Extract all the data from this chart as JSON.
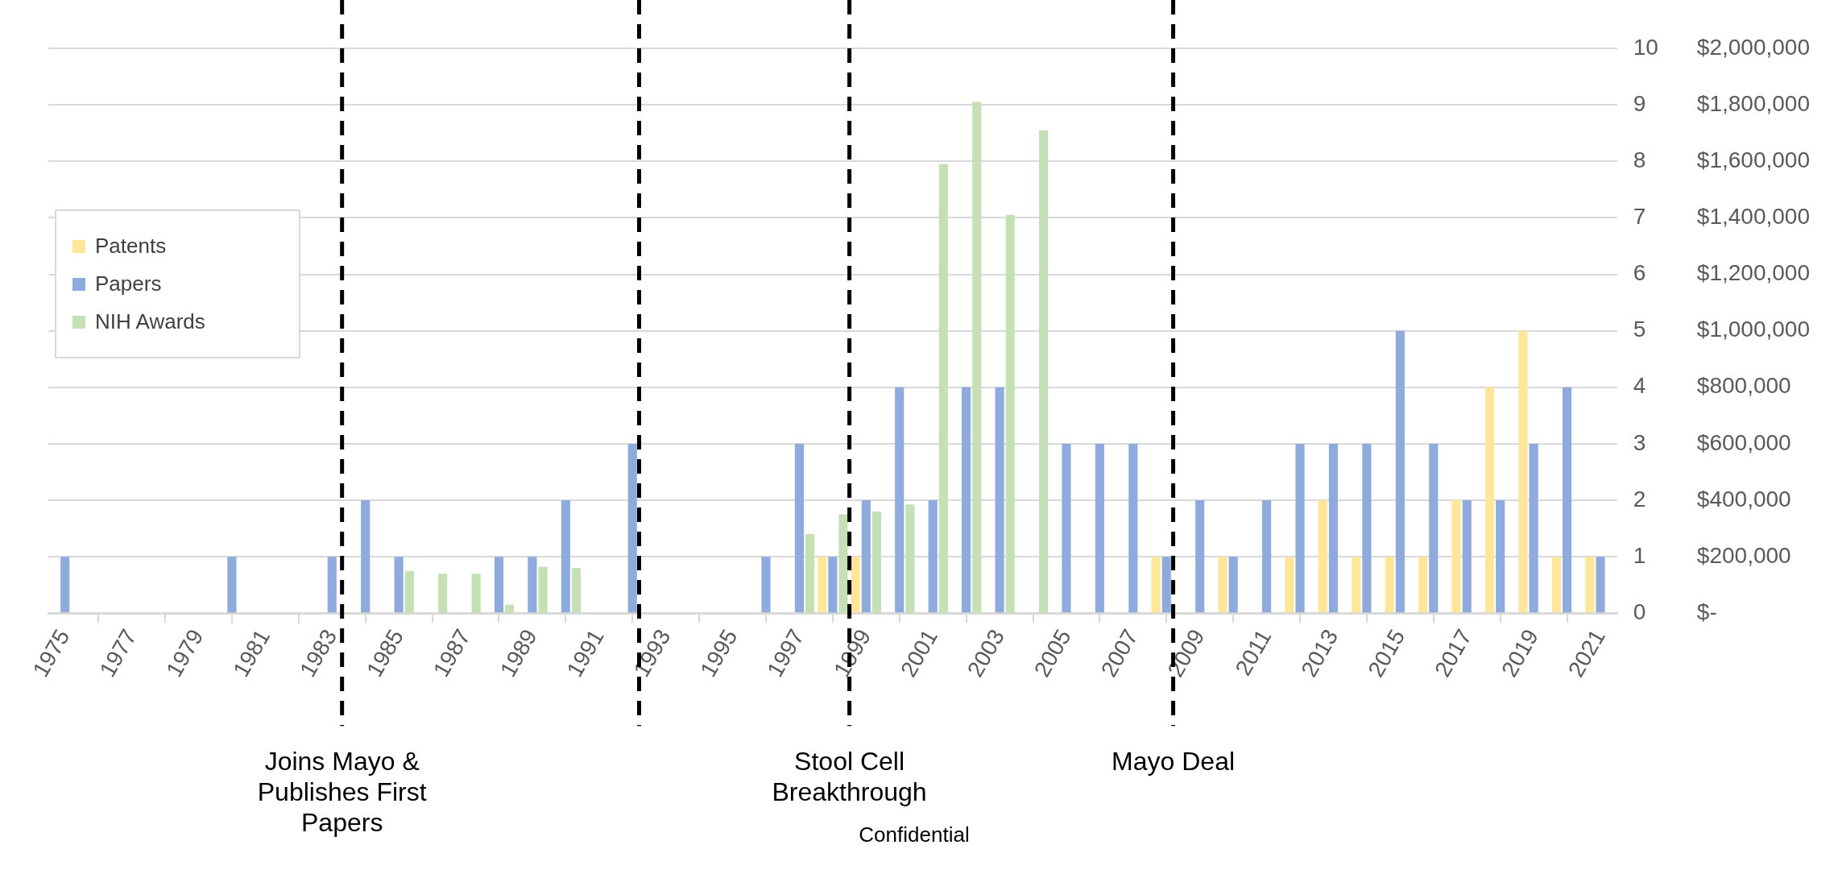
{
  "chart_data": {
    "type": "bar",
    "x": [
      1975,
      1976,
      1977,
      1978,
      1979,
      1980,
      1981,
      1982,
      1983,
      1984,
      1985,
      1986,
      1987,
      1988,
      1989,
      1990,
      1991,
      1992,
      1993,
      1994,
      1995,
      1996,
      1997,
      1998,
      1999,
      2000,
      2001,
      2002,
      2003,
      2004,
      2005,
      2006,
      2007,
      2008,
      2009,
      2010,
      2011,
      2012,
      2013,
      2014,
      2015,
      2016,
      2017,
      2018,
      2019,
      2020,
      2021
    ],
    "series": [
      {
        "name": "Patents",
        "color": "#ffe699",
        "values": [
          0,
          0,
          0,
          0,
          0,
          0,
          0,
          0,
          0,
          0,
          0,
          0,
          0,
          0,
          0,
          0,
          0,
          0,
          0,
          0,
          0,
          0,
          0,
          1,
          1,
          0,
          0,
          0,
          0,
          0,
          0,
          0,
          0,
          1,
          0,
          1,
          0,
          1,
          2,
          1,
          1,
          1,
          2,
          4,
          5,
          1,
          1
        ]
      },
      {
        "name": "Papers",
        "color": "#8faadc",
        "values": [
          1,
          0,
          0,
          0,
          0,
          1,
          0,
          0,
          1,
          2,
          1,
          0,
          0,
          1,
          1,
          2,
          0,
          3,
          0,
          0,
          0,
          1,
          3,
          1,
          2,
          4,
          2,
          4,
          4,
          0,
          3,
          3,
          3,
          1,
          2,
          1,
          2,
          3,
          3,
          3,
          5,
          3,
          2,
          2,
          3,
          4,
          1
        ]
      },
      {
        "name": "NIH Awards",
        "color": "#c5e0b4",
        "axis": "y2",
        "values": [
          0,
          0,
          0,
          0,
          0,
          0,
          0,
          0,
          0,
          0,
          150000,
          140000,
          140000,
          30000,
          165000,
          160000,
          0,
          0,
          0,
          0,
          0,
          0,
          280000,
          350000,
          360000,
          385000,
          1590000,
          1810000,
          1410000,
          1710000,
          0,
          0,
          0,
          0,
          0,
          0,
          0,
          0,
          0,
          0,
          0,
          0,
          0,
          0,
          0,
          0,
          0
        ]
      }
    ],
    "xlim": [
      1974.5,
      2021.5
    ],
    "xticks": [
      1975,
      1977,
      1979,
      1981,
      1983,
      1985,
      1987,
      1989,
      1991,
      1993,
      1995,
      1997,
      1999,
      2001,
      2003,
      2005,
      2007,
      2009,
      2011,
      2013,
      2015,
      2017,
      2019,
      2021
    ],
    "ylim": [
      0,
      10
    ],
    "yticks": [
      0,
      1,
      2,
      3,
      4,
      5,
      6,
      7,
      8,
      9,
      10
    ],
    "y2lim": [
      0,
      2000000
    ],
    "y2ticks": [
      {
        "value": 0,
        "label": "$-"
      },
      {
        "value": 200000,
        "label": "$200,000"
      },
      {
        "value": 400000,
        "label": "$400,000"
      },
      {
        "value": 600000,
        "label": "$600,000"
      },
      {
        "value": 800000,
        "label": "$800,000"
      },
      {
        "value": 1000000,
        "label": "$1,000,000"
      },
      {
        "value": 1200000,
        "label": "$1,200,000"
      },
      {
        "value": 1400000,
        "label": "$1,400,000"
      },
      {
        "value": 1600000,
        "label": "$1,600,000"
      },
      {
        "value": 1800000,
        "label": "$1,800,000"
      },
      {
        "value": 2000000,
        "label": "$2,000,000"
      }
    ],
    "grid": "y",
    "legend": "left",
    "ref_lines": [
      {
        "axis": "x",
        "value": 1983.3,
        "label": "Joins Mayo & Publishes First Papers",
        "color": "#000000",
        "line_style": "dashed"
      },
      {
        "axis": "x",
        "value": 1992.2,
        "color": "#000000",
        "line_style": "dashed"
      },
      {
        "axis": "x",
        "value": 1998.5,
        "label": "Stool Cell Breakthrough",
        "color": "#000000",
        "line_style": "dashed"
      },
      {
        "axis": "x",
        "value": 2008.2,
        "label": "Mayo Deal",
        "color": "#000000",
        "line_style": "dashed"
      }
    ],
    "annotations": [
      "Confidential"
    ]
  }
}
